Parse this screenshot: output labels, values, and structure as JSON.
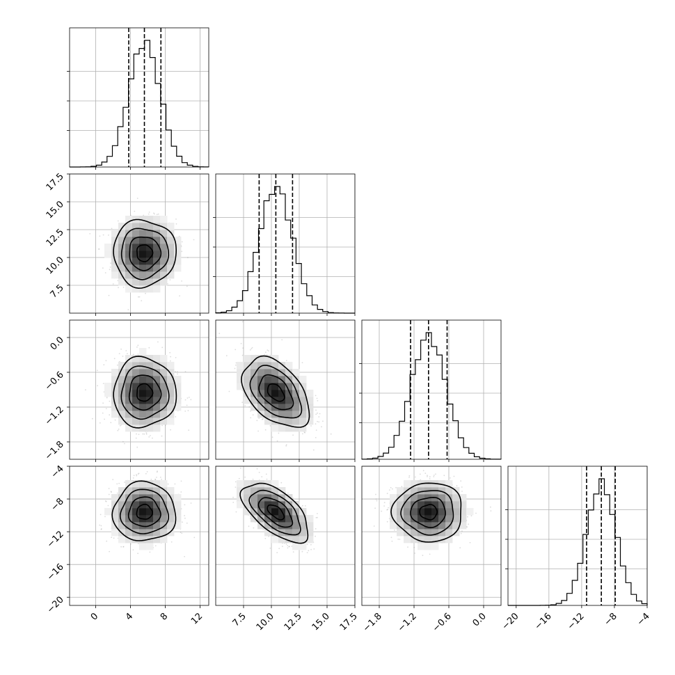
{
  "chart_data": {
    "type": "corner",
    "grid": true,
    "parameters": [
      {
        "range": [
          -3,
          13
        ],
        "ticks": [
          0,
          4,
          8,
          12
        ],
        "tick_labels": [
          "0",
          "4",
          "8",
          "12"
        ],
        "mean": 5.6,
        "sd": 1.8,
        "quantiles": [
          3.8,
          5.6,
          7.5
        ]
      },
      {
        "range": [
          5,
          17.5
        ],
        "ticks": [
          7.5,
          10.0,
          12.5,
          15.0,
          17.5
        ],
        "tick_labels": [
          "7.5",
          "10.0",
          "12.5",
          "15.0",
          "17.5"
        ],
        "mean": 10.4,
        "sd": 1.5,
        "quantiles": [
          8.9,
          10.4,
          11.9
        ]
      },
      {
        "range": [
          -2.1,
          0.3
        ],
        "ticks": [
          -1.8,
          -1.2,
          -0.6,
          0.0
        ],
        "tick_labels": [
          "−1.8",
          "−1.2",
          "−0.6",
          "0.0"
        ],
        "mean": -0.95,
        "sd": 0.3,
        "quantiles": [
          -1.26,
          -0.95,
          -0.63
        ]
      },
      {
        "range": [
          -21,
          -4
        ],
        "ticks": [
          -20,
          -16,
          -12,
          -8,
          -4
        ],
        "tick_labels": [
          "−20",
          "−16",
          "−12",
          "−8",
          "−4"
        ],
        "mean": -9.6,
        "sd": 1.8,
        "quantiles": [
          -11.4,
          -9.6,
          -7.9
        ]
      }
    ],
    "correlations": [
      {
        "pair": [
          0,
          1
        ],
        "rho": 0.0
      },
      {
        "pair": [
          0,
          2
        ],
        "rho": 0.0
      },
      {
        "pair": [
          1,
          2
        ],
        "rho": -0.45
      },
      {
        "pair": [
          0,
          3
        ],
        "rho": 0.0
      },
      {
        "pair": [
          1,
          3
        ],
        "rho": -0.6
      },
      {
        "pair": [
          2,
          3
        ],
        "rho": 0.0
      }
    ],
    "contour_levels_sigma": [
      0.5,
      1.0,
      1.5,
      2.0
    ]
  }
}
